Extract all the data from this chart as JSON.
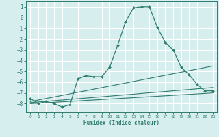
{
  "line1_x": [
    0,
    1,
    2,
    3,
    4,
    5,
    6,
    7,
    8,
    9,
    10,
    11,
    12,
    13,
    14,
    15,
    16,
    17,
    18,
    19,
    20,
    21,
    22,
    23
  ],
  "line1_y": [
    -7.5,
    -8.0,
    -7.8,
    -8.0,
    -8.3,
    -8.1,
    -5.7,
    -5.4,
    -5.5,
    -5.5,
    -4.6,
    -2.6,
    -0.4,
    0.9,
    1.0,
    1.0,
    -0.9,
    -2.3,
    -3.0,
    -4.6,
    -5.3,
    -6.2,
    -6.8,
    -6.8
  ],
  "line2_x": [
    0,
    23
  ],
  "line2_y": [
    -7.8,
    -4.5
  ],
  "line3_x": [
    0,
    23
  ],
  "line3_y": [
    -7.9,
    -6.5
  ],
  "line4_x": [
    0,
    23
  ],
  "line4_y": [
    -8.0,
    -7.0
  ],
  "line_color": "#2e7b6e",
  "bg_color": "#d6eeee",
  "grid_color": "#ffffff",
  "xlabel": "Humidex (Indice chaleur)",
  "xlim": [
    -0.5,
    23.5
  ],
  "ylim": [
    -8.8,
    1.5
  ],
  "yticks": [
    1,
    0,
    -1,
    -2,
    -3,
    -4,
    -5,
    -6,
    -7,
    -8
  ],
  "xticks": [
    0,
    1,
    2,
    3,
    4,
    5,
    6,
    7,
    8,
    9,
    10,
    11,
    12,
    13,
    14,
    15,
    16,
    17,
    18,
    19,
    20,
    21,
    22,
    23
  ]
}
